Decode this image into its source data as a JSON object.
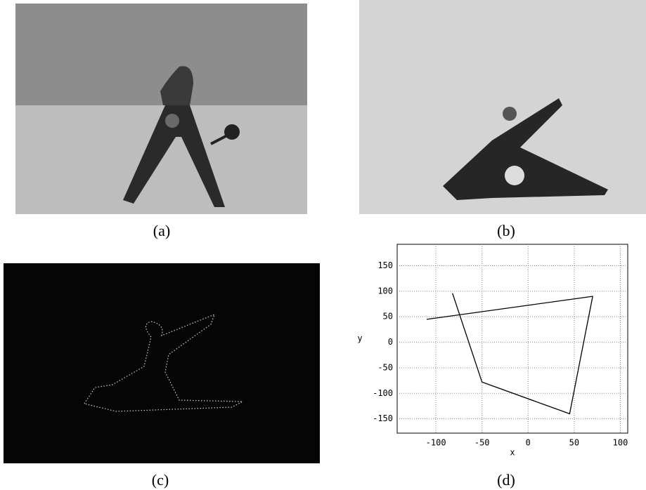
{
  "captions": [
    "(a)",
    "(b)",
    "(c)",
    "(d)"
  ],
  "chart_data": {
    "type": "line",
    "x_label": "x",
    "y_label": "y",
    "x": [
      -110,
      70,
      45,
      -50,
      -82
    ],
    "series": [
      {
        "color": "#000000",
        "values": [
          45,
          90,
          -140,
          -78,
          96
        ]
      }
    ],
    "xlim": [
      -142,
      108
    ],
    "ylim": [
      -178,
      192
    ],
    "xticks": [
      -100,
      -50,
      0,
      50,
      100
    ],
    "yticks": [
      -150,
      -100,
      -50,
      0,
      50,
      100,
      150
    ],
    "grid": true
  }
}
